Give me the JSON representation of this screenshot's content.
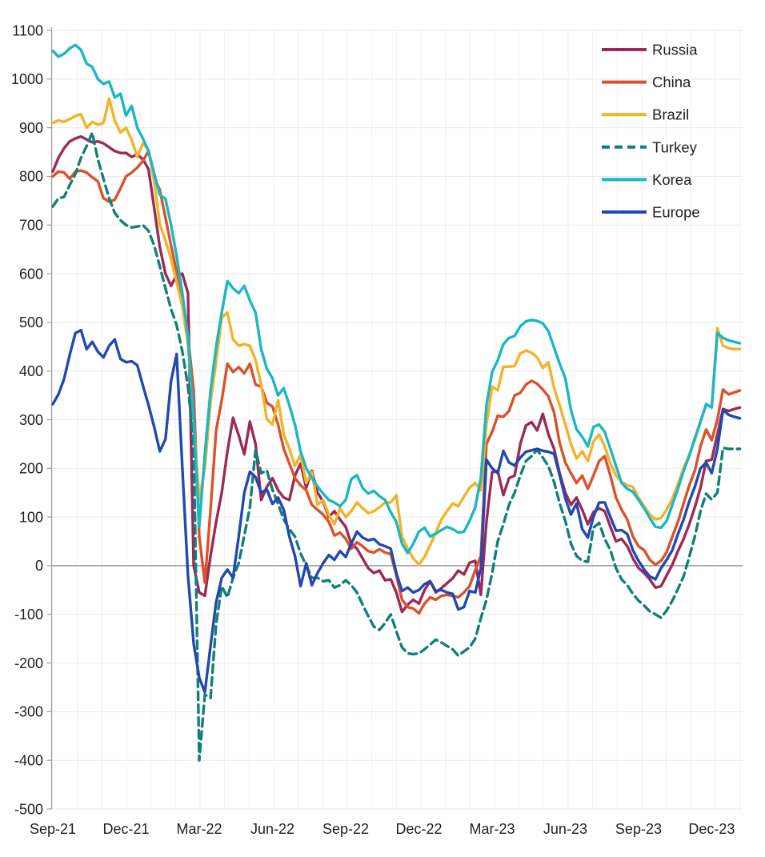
{
  "chart_data": {
    "type": "line",
    "title": "",
    "xlabel": "",
    "ylabel": "",
    "x_unit": "week_index",
    "n_points": 123,
    "ylim": [
      -500,
      1100
    ],
    "y_tick_step": 100,
    "zero_line": true,
    "grid": {
      "horizontal": true,
      "vertical_monthly": true,
      "month_count": 29
    },
    "legend_position": "top-right-inside",
    "x_ticks": [
      {
        "week": 0,
        "label": "Sep-21"
      },
      {
        "week": 13,
        "label": "Dec-21"
      },
      {
        "week": 26,
        "label": "Mar-22"
      },
      {
        "week": 39,
        "label": "Jun-22"
      },
      {
        "week": 52,
        "label": "Sep-22"
      },
      {
        "week": 65,
        "label": "Dec-22"
      },
      {
        "week": 78,
        "label": "Mar-23"
      },
      {
        "week": 91,
        "label": "Jun-23"
      },
      {
        "week": 104,
        "label": "Sep-23"
      },
      {
        "week": 117,
        "label": "Dec-23"
      }
    ],
    "series": [
      {
        "name": "Russia",
        "color": "#9B2A59",
        "dashed": false,
        "values": [
          810,
          838,
          858,
          872,
          878,
          882,
          876,
          870,
          872,
          868,
          860,
          852,
          848,
          848,
          840,
          845,
          835,
          815,
          735,
          655,
          600,
          575,
          598,
          600,
          560,
          0,
          -55,
          -62,
          20,
          90,
          150,
          235,
          304,
          268,
          229,
          296,
          250,
          135,
          162,
          180,
          155,
          140,
          135,
          185,
          210,
          160,
          195,
          150,
          132,
          100,
          112,
          95,
          80,
          45,
          35,
          15,
          -5,
          -15,
          -10,
          -30,
          -28,
          -55,
          -95,
          -80,
          -70,
          -78,
          -50,
          -32,
          -55,
          -46,
          -36,
          -26,
          -10,
          -18,
          6,
          10,
          -60,
          90,
          192,
          195,
          145,
          180,
          185,
          250,
          288,
          295,
          278,
          312,
          270,
          240,
          190,
          150,
          125,
          140,
          115,
          85,
          110,
          118,
          112,
          80,
          50,
          55,
          40,
          15,
          -5,
          -15,
          -28,
          -45,
          -42,
          -20,
          2,
          30,
          55,
          85,
          120,
          160,
          215,
          218,
          270,
          322,
          318,
          322,
          325
        ]
      },
      {
        "name": "China",
        "color": "#D9522B",
        "dashed": false,
        "values": [
          800,
          810,
          808,
          795,
          810,
          812,
          808,
          798,
          790,
          755,
          748,
          752,
          775,
          800,
          808,
          818,
          832,
          852,
          795,
          773,
          715,
          658,
          603,
          554,
          472,
          360,
          60,
          -35,
          115,
          278,
          340,
          415,
          398,
          408,
          395,
          415,
          372,
          368,
          335,
          327,
          290,
          240,
          210,
          180,
          165,
          155,
          125,
          115,
          105,
          90,
          62,
          68,
          55,
          35,
          48,
          40,
          30,
          27,
          34,
          27,
          24,
          -20,
          -70,
          -85,
          -88,
          -98,
          -78,
          -65,
          -70,
          -62,
          -60,
          -62,
          -65,
          -55,
          -42,
          -9,
          20,
          250,
          275,
          308,
          306,
          318,
          350,
          355,
          372,
          380,
          374,
          362,
          348,
          315,
          252,
          212,
          190,
          170,
          185,
          158,
          185,
          215,
          225,
          185,
          140,
          115,
          95,
          60,
          40,
          32,
          12,
          2,
          10,
          28,
          60,
          90,
          128,
          165,
          195,
          245,
          280,
          258,
          300,
          362,
          352,
          356,
          360
        ]
      },
      {
        "name": "Brazil",
        "color": "#F2B32A",
        "dashed": false,
        "values": [
          910,
          915,
          912,
          918,
          924,
          928,
          900,
          912,
          906,
          910,
          960,
          915,
          890,
          900,
          875,
          840,
          868,
          855,
          790,
          702,
          668,
          630,
          582,
          532,
          455,
          300,
          135,
          200,
          335,
          420,
          510,
          520,
          465,
          452,
          455,
          452,
          422,
          372,
          302,
          290,
          340,
          270,
          240,
          205,
          228,
          170,
          192,
          125,
          135,
          105,
          85,
          118,
          100,
          112,
          130,
          118,
          108,
          112,
          120,
          130,
          130,
          145,
          60,
          35,
          15,
          2,
          18,
          42,
          68,
          95,
          112,
          128,
          122,
          142,
          160,
          170,
          155,
          290,
          368,
          360,
          409,
          409,
          410,
          436,
          442,
          438,
          428,
          406,
          418,
          365,
          330,
          290,
          250,
          220,
          235,
          215,
          255,
          270,
          245,
          210,
          185,
          172,
          165,
          162,
          140,
          122,
          105,
          95,
          98,
          115,
          138,
          168,
          200,
          228,
          258,
          298,
          330,
          326,
          488,
          452,
          447,
          445,
          445
        ]
      },
      {
        "name": "Turkey",
        "color": "#12807A",
        "dashed": true,
        "values": [
          738,
          755,
          758,
          782,
          805,
          838,
          862,
          890,
          835,
          795,
          755,
          725,
          710,
          700,
          695,
          697,
          700,
          688,
          658,
          615,
          570,
          527,
          494,
          440,
          368,
          253,
          -400,
          -265,
          -272,
          -120,
          -42,
          -65,
          -25,
          5,
          62,
          120,
          238,
          190,
          196,
          156,
          127,
          95,
          75,
          60,
          25,
          0,
          -25,
          -25,
          -32,
          -30,
          -45,
          -40,
          -30,
          -40,
          -55,
          -80,
          -103,
          -125,
          -132,
          -118,
          -100,
          -135,
          -168,
          -180,
          -182,
          -180,
          -172,
          -162,
          -152,
          -158,
          -165,
          -172,
          -185,
          -176,
          -168,
          -150,
          -108,
          -70,
          -15,
          50,
          85,
          125,
          150,
          185,
          215,
          225,
          238,
          222,
          205,
          172,
          128,
          92,
          45,
          20,
          10,
          8,
          78,
          88,
          55,
          32,
          -5,
          -28,
          -40,
          -58,
          -72,
          -82,
          -94,
          -100,
          -107,
          -92,
          -72,
          -48,
          -22,
          18,
          60,
          112,
          148,
          136,
          150,
          242,
          240,
          240,
          240
        ]
      },
      {
        "name": "Korea",
        "color": "#1CB7C5",
        "dashed": false,
        "values": [
          1058,
          1046,
          1052,
          1063,
          1070,
          1060,
          1032,
          1025,
          1000,
          990,
          995,
          962,
          970,
          925,
          945,
          900,
          878,
          852,
          806,
          762,
          754,
          700,
          636,
          560,
          472,
          300,
          80,
          230,
          360,
          450,
          520,
          585,
          570,
          560,
          575,
          545,
          520,
          445,
          405,
          385,
          350,
          365,
          330,
          290,
          235,
          200,
          180,
          163,
          148,
          135,
          130,
          122,
          135,
          178,
          186,
          160,
          148,
          154,
          143,
          135,
          110,
          90,
          45,
          26,
          45,
          70,
          78,
          60,
          66,
          73,
          80,
          75,
          68,
          70,
          92,
          120,
          180,
          330,
          398,
          422,
          455,
          468,
          472,
          492,
          502,
          505,
          503,
          498,
          482,
          448,
          415,
          385,
          320,
          280,
          265,
          245,
          285,
          290,
          275,
          240,
          205,
          170,
          158,
          152,
          135,
          118,
          98,
          80,
          78,
          92,
          125,
          158,
          195,
          225,
          262,
          295,
          332,
          325,
          478,
          468,
          463,
          460,
          457
        ]
      },
      {
        "name": "Europe",
        "color": "#2149B0",
        "dashed": false,
        "values": [
          332,
          352,
          384,
          433,
          478,
          484,
          445,
          460,
          440,
          428,
          452,
          465,
          425,
          418,
          420,
          412,
          370,
          330,
          285,
          235,
          260,
          380,
          435,
          200,
          -20,
          -160,
          -230,
          -260,
          -165,
          -75,
          -25,
          -8,
          -25,
          60,
          150,
          193,
          182,
          150,
          157,
          127,
          140,
          115,
          60,
          20,
          -42,
          5,
          -40,
          -15,
          5,
          22,
          12,
          30,
          18,
          45,
          70,
          58,
          52,
          55,
          44,
          40,
          35,
          -15,
          -52,
          -45,
          -55,
          -50,
          -38,
          -32,
          -52,
          -50,
          -55,
          -58,
          -90,
          -85,
          -52,
          -55,
          -5,
          218,
          200,
          190,
          236,
          212,
          206,
          222,
          234,
          237,
          240,
          236,
          234,
          230,
          186,
          138,
          105,
          128,
          75,
          58,
          100,
          130,
          130,
          100,
          72,
          73,
          65,
          32,
          10,
          -8,
          -22,
          -28,
          -5,
          12,
          32,
          65,
          95,
          132,
          162,
          200,
          212,
          190,
          240,
          320,
          310,
          306,
          303
        ]
      }
    ],
    "colors": {
      "grid_h": "#e9e9e9",
      "grid_v": "#f0f0f0",
      "zero_line": "#8c8c8c",
      "axis": "#9e9e9e",
      "text": "#1f1f1f"
    }
  }
}
